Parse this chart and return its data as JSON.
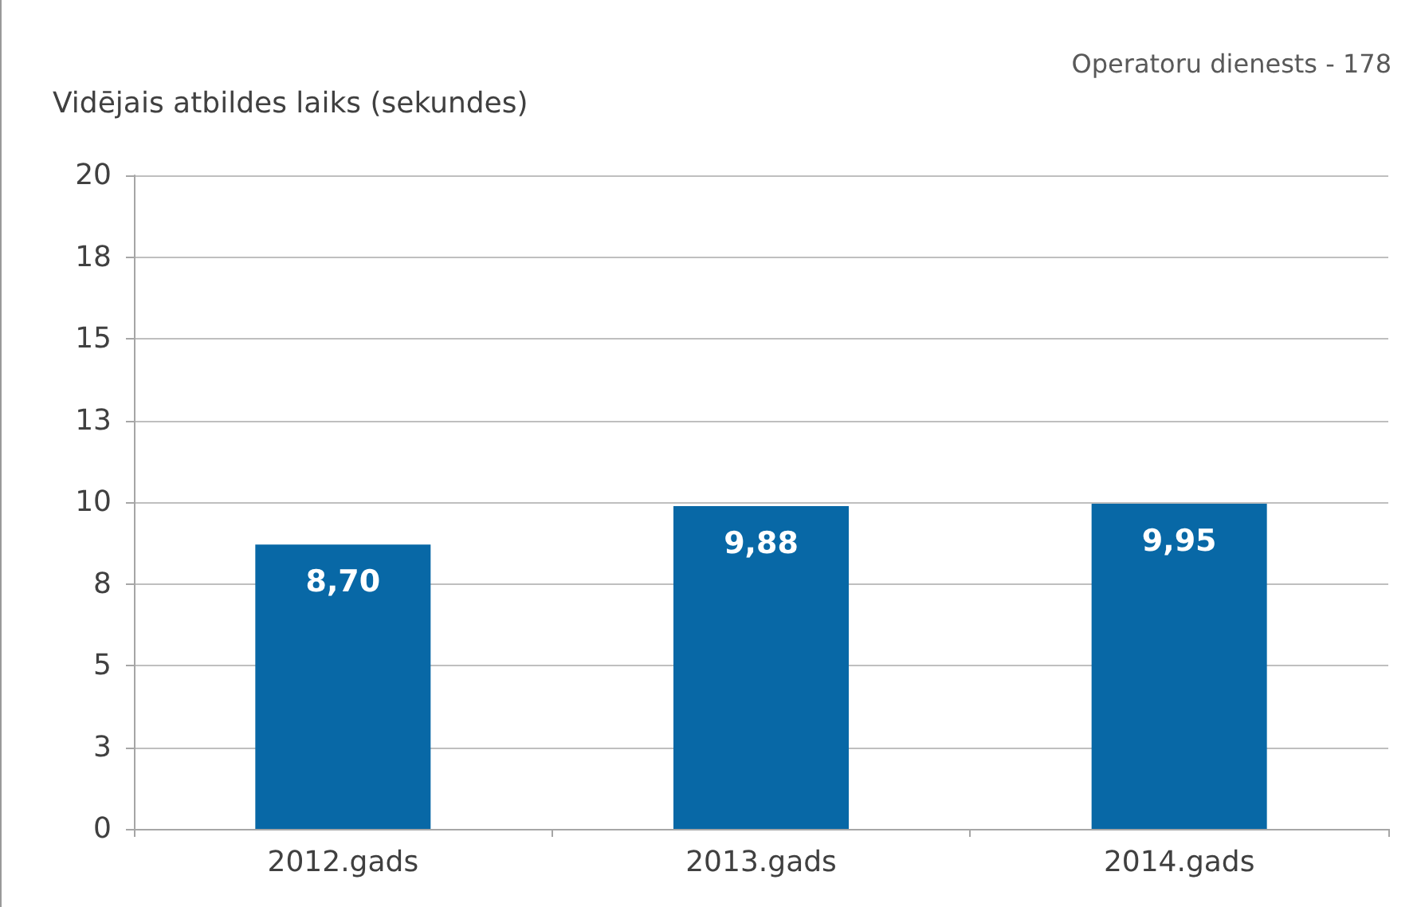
{
  "chart_data": {
    "type": "bar",
    "ylabel": "Vidējais atbildes laiks (sekundes)",
    "annotations": [
      "Operatoru dienests - 178"
    ],
    "categories": [
      "2012.gads",
      "2013.gads",
      "2014.gads"
    ],
    "values": [
      8.7,
      9.88,
      9.95
    ],
    "value_labels": [
      "8,70",
      "9,88",
      "9,95"
    ],
    "color": "#0868a6",
    "ylim": [
      0,
      20
    ],
    "yticks": [
      {
        "value": 0,
        "label": "0"
      },
      {
        "value": 2.5,
        "label": "3"
      },
      {
        "value": 5,
        "label": "5"
      },
      {
        "value": 7.5,
        "label": "8"
      },
      {
        "value": 10,
        "label": "10"
      },
      {
        "value": 12.5,
        "label": "13"
      },
      {
        "value": 15,
        "label": "15"
      },
      {
        "value": 17.5,
        "label": "18"
      },
      {
        "value": 20,
        "label": "20"
      }
    ],
    "grid": "y"
  }
}
